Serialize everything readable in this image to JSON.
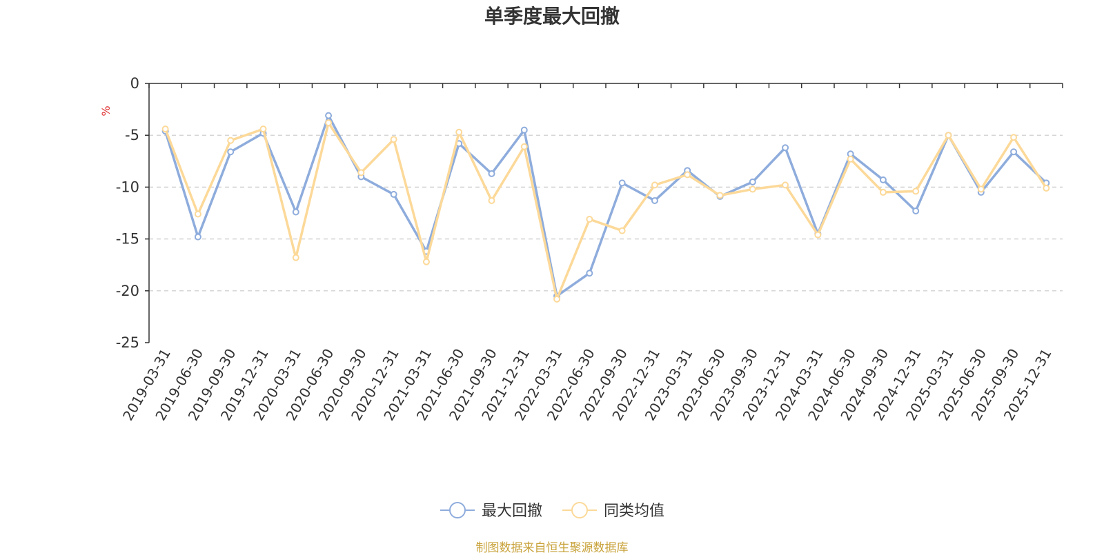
{
  "title": "单季度最大回撤",
  "footer": "制图数据来自恒生聚源数据库",
  "colors": {
    "series1": "#8eacdc",
    "series2": "#fcd999",
    "footer": "#c8a23a",
    "unit": "#e03030",
    "grid": "#c8c8c8",
    "axis": "#333333"
  },
  "chart_data": {
    "type": "line",
    "ylabel": "%",
    "ylim": [
      -25,
      0
    ],
    "yticks": [
      0,
      -5,
      -10,
      -15,
      -20,
      -25
    ],
    "grid": "dashed horizontal",
    "legend_position": "bottom-center",
    "categories": [
      "2019-03-31",
      "2019-06-30",
      "2019-09-30",
      "2019-12-31",
      "2020-03-31",
      "2020-06-30",
      "2020-09-30",
      "2020-12-31",
      "2021-03-31",
      "2021-06-30",
      "2021-09-30",
      "2021-12-31",
      "2022-03-31",
      "2022-06-30",
      "2022-09-30",
      "2022-12-31",
      "2023-03-31",
      "2023-06-30",
      "2023-09-30",
      "2023-12-31",
      "2024-03-31",
      "2024-06-30",
      "2024-09-30",
      "2024-12-31",
      "2025-03-31",
      "2025-06-30",
      "2025-09-30",
      "2025-12-31"
    ],
    "series": [
      {
        "name": "最大回撤",
        "values": [
          -4.6,
          -14.8,
          -6.6,
          -4.8,
          -12.4,
          -3.1,
          -9.0,
          -10.7,
          -16.2,
          -5.8,
          -8.7,
          -4.5,
          -20.5,
          -18.3,
          -9.6,
          -11.3,
          -8.4,
          -10.9,
          -9.5,
          -6.2,
          -14.5,
          -6.8,
          -9.3,
          -12.3,
          -5.0,
          -10.5,
          -6.6,
          -9.6
        ]
      },
      {
        "name": "同类均值",
        "values": [
          -4.4,
          -12.6,
          -5.5,
          -4.4,
          -16.8,
          -3.8,
          -8.6,
          -5.4,
          -17.2,
          -4.7,
          -11.3,
          -6.1,
          -20.8,
          -13.1,
          -14.2,
          -9.8,
          -8.8,
          -10.8,
          -10.2,
          -9.8,
          -14.6,
          -7.3,
          -10.5,
          -10.4,
          -5.0,
          -10.2,
          -5.2,
          -10.1
        ]
      }
    ]
  }
}
